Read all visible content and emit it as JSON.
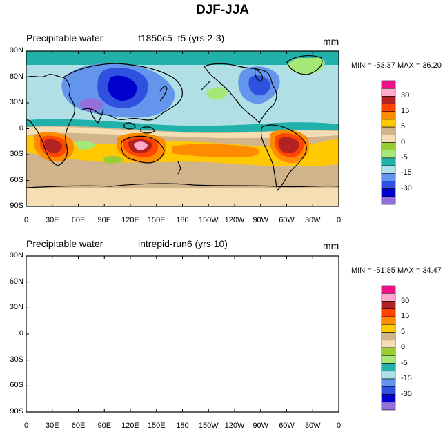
{
  "title": "DJF-JJA",
  "colors": {
    "pos4": "#ee1188",
    "pos3": "#ffaacc",
    "pos2": "#b22222",
    "pos1": "#ff4500",
    "pos0": "#ff8c00",
    "mid3": "#ffc800",
    "mid2": "#d2b48c",
    "mid1": "#f5deb3",
    "neg0": "#9acd32",
    "neg1": "#a6e878",
    "neg2": "#20b2aa",
    "neg3": "#b0e0e6",
    "neg4": "#6495ed",
    "neg5": "#3050e0",
    "neg6": "#0000cd",
    "neg7": "#9370db"
  },
  "colorbar_labels": [
    "30",
    "15",
    "5",
    "0",
    "-5",
    "-15",
    "-30"
  ],
  "lat_ticks": [
    "90N",
    "60N",
    "30N",
    "0",
    "30S",
    "60S",
    "90S"
  ],
  "lon_ticks": [
    "0",
    "30E",
    "60E",
    "90E",
    "120E",
    "150E",
    "180",
    "150W",
    "120W",
    "90W",
    "60W",
    "30W",
    "0"
  ],
  "panels": [
    {
      "variable": "Precipitable water",
      "case": "f1850c5_t5 (yrs 2-3)",
      "units": "mm",
      "minmax": "MIN = -53.37 MAX =  36.20"
    },
    {
      "variable": "Precipitable water",
      "case": "intrepid-run6 (yrs 10)",
      "units": "mm",
      "minmax": "MIN = -51.85 MAX =  34.47"
    }
  ]
}
